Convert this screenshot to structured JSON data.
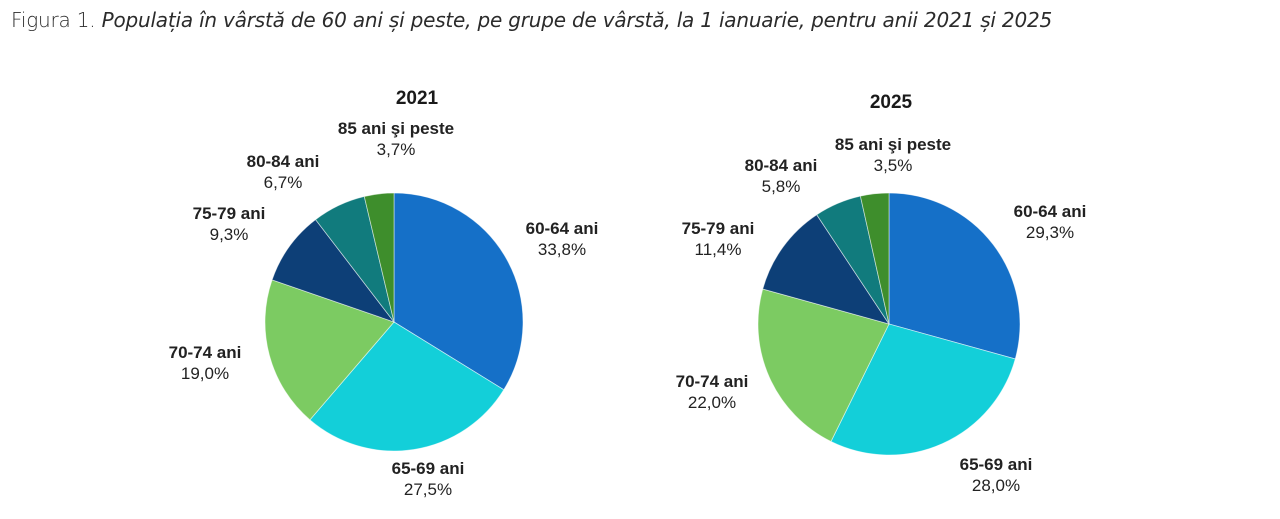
{
  "caption": {
    "prefix": "Figura 1.",
    "title": "Populația în vârstă de 60 ani și peste, pe grupe de vârstă, la 1 ianuarie, pentru anii 2021 și 2025"
  },
  "colors": {
    "60-64 ani": "#1570C8",
    "65-69 ani": "#13CFD9",
    "70-74 ani": "#7CCB62",
    "75-79 ani": "#0D3F77",
    "80-84 ani": "#117B7D",
    "85 ani şi peste": "#3E8E2C"
  },
  "chart_data": [
    {
      "type": "pie",
      "title": "2021",
      "categories": [
        "60-64 ani",
        "65-69 ani",
        "70-74 ani",
        "75-79 ani",
        "80-84 ani",
        "85 ani şi peste"
      ],
      "values": [
        33.8,
        27.5,
        19.0,
        9.3,
        6.7,
        3.7
      ],
      "value_labels": [
        "33,8%",
        "27,5%",
        "19,0%",
        "9,3%",
        "6,7%",
        "3,7%"
      ],
      "units": "%",
      "start": "12 o'clock",
      "direction": "clockwise",
      "legend": "none (data labels outside slices)"
    },
    {
      "type": "pie",
      "title": "2025",
      "categories": [
        "60-64 ani",
        "65-69 ani",
        "70-74 ani",
        "75-79 ani",
        "80-84 ani",
        "85 ani şi peste"
      ],
      "values": [
        29.3,
        28.0,
        22.0,
        11.4,
        5.8,
        3.5
      ],
      "value_labels": [
        "29,3%",
        "28,0%",
        "22,0%",
        "11,4%",
        "5,8%",
        "3,5%"
      ],
      "units": "%",
      "start": "12 o'clock",
      "direction": "clockwise",
      "legend": "none (data labels outside slices)"
    }
  ]
}
